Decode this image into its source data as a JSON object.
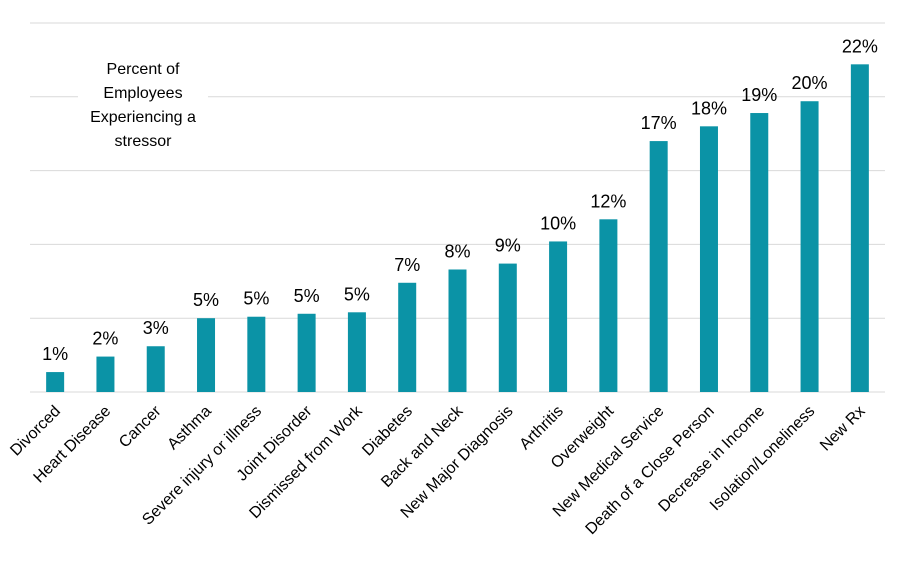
{
  "chart_data": {
    "type": "bar",
    "annotation": "Percent of Employees Experiencing a stressor",
    "categories": [
      "Divorced",
      "Heart Disease",
      "Cancer",
      "Asthma",
      "Severe injury or illness",
      "Joint Disorder",
      "Dismissed from Work",
      "Diabetes",
      "Back and Neck",
      "New Major Diagnosis",
      "Arthritis",
      "Overweight",
      "New Medical Service",
      "Death of a Close Person",
      "Decrease in Income",
      "Isolation/Loneliness",
      "New Rx"
    ],
    "values": [
      1.35,
      2.4,
      3.1,
      5.0,
      5.1,
      5.3,
      5.4,
      7.4,
      8.3,
      8.7,
      10.2,
      11.7,
      17.0,
      18.0,
      18.9,
      19.7,
      22.2
    ],
    "value_labels": [
      "1%",
      "2%",
      "3%",
      "5%",
      "5%",
      "5%",
      "5%",
      "7%",
      "8%",
      "9%",
      "10%",
      "12%",
      "17%",
      "18%",
      "19%",
      "20%",
      "22%"
    ],
    "color": "#0b93a6",
    "ylim": [
      0,
      25
    ],
    "yticks": [
      0,
      5,
      10,
      15,
      20,
      25
    ],
    "grid": true
  }
}
